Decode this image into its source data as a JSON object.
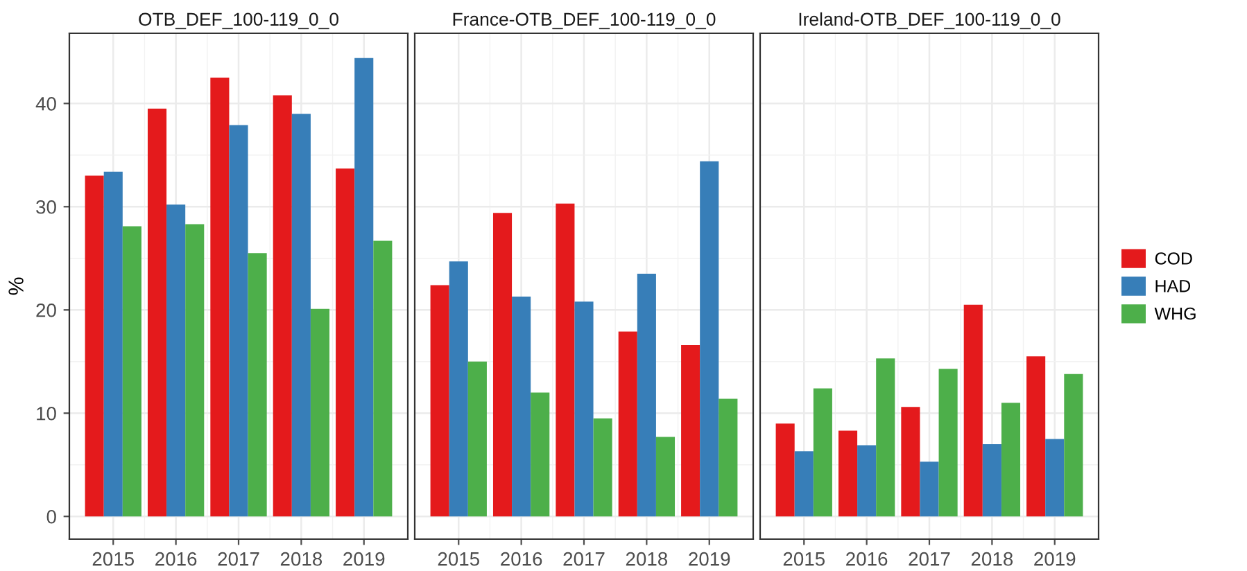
{
  "chart_data": [
    {
      "type": "bar",
      "title": "OTB_DEF_100-119_0_0",
      "ylabel": "%",
      "x": [
        2015,
        2016,
        2017,
        2018,
        2019
      ],
      "xlim": [
        2014.3,
        2019.7
      ],
      "xticks": [
        2015,
        2016,
        2017,
        2018,
        2019
      ],
      "ylim": [
        -2.2,
        46.8
      ],
      "yticks": [
        0,
        10,
        20,
        30,
        40
      ],
      "grid": true,
      "legend": "right",
      "series": [
        {
          "name": "COD",
          "color": "#e41a1c",
          "values": [
            33.0,
            39.5,
            42.5,
            40.8,
            33.7
          ]
        },
        {
          "name": "HAD",
          "color": "#377eb8",
          "values": [
            33.4,
            30.2,
            37.9,
            39.0,
            44.4
          ]
        },
        {
          "name": "WHG",
          "color": "#4daf4a",
          "values": [
            28.1,
            28.3,
            25.5,
            20.1,
            26.7
          ]
        }
      ]
    },
    {
      "type": "bar",
      "title": "France-OTB_DEF_100-119_0_0",
      "x": [
        2015,
        2016,
        2017,
        2018,
        2019
      ],
      "xlim": [
        2014.3,
        2019.7
      ],
      "xticks": [
        2015,
        2016,
        2017,
        2018,
        2019
      ],
      "ylim": [
        -2.2,
        46.8
      ],
      "yticks": [
        0,
        10,
        20,
        30,
        40
      ],
      "grid": true,
      "tick_labels": "x",
      "series": [
        {
          "color": "#e41a1c",
          "values": [
            22.4,
            29.4,
            30.3,
            17.9,
            16.6
          ]
        },
        {
          "color": "#377eb8",
          "values": [
            24.7,
            21.3,
            20.8,
            23.5,
            34.4
          ]
        },
        {
          "color": "#4daf4a",
          "values": [
            15.0,
            12.0,
            9.5,
            7.7,
            11.4
          ]
        }
      ]
    },
    {
      "type": "bar",
      "title": "Ireland-OTB_DEF_100-119_0_0",
      "x": [
        2015,
        2016,
        2017,
        2018,
        2019
      ],
      "xlim": [
        2014.3,
        2019.7
      ],
      "xticks": [
        2015,
        2016,
        2017,
        2018,
        2019
      ],
      "ylim": [
        -2.2,
        46.8
      ],
      "yticks": [
        0,
        10,
        20,
        30,
        40
      ],
      "grid": true,
      "tick_labels": "x",
      "series": [
        {
          "color": "#e41a1c",
          "values": [
            9.0,
            8.3,
            10.6,
            20.5,
            15.5
          ]
        },
        {
          "color": "#377eb8",
          "values": [
            6.3,
            6.9,
            5.3,
            7.0,
            7.5
          ]
        },
        {
          "color": "#4daf4a",
          "values": [
            12.4,
            15.3,
            14.3,
            11.0,
            13.8
          ]
        }
      ]
    }
  ]
}
